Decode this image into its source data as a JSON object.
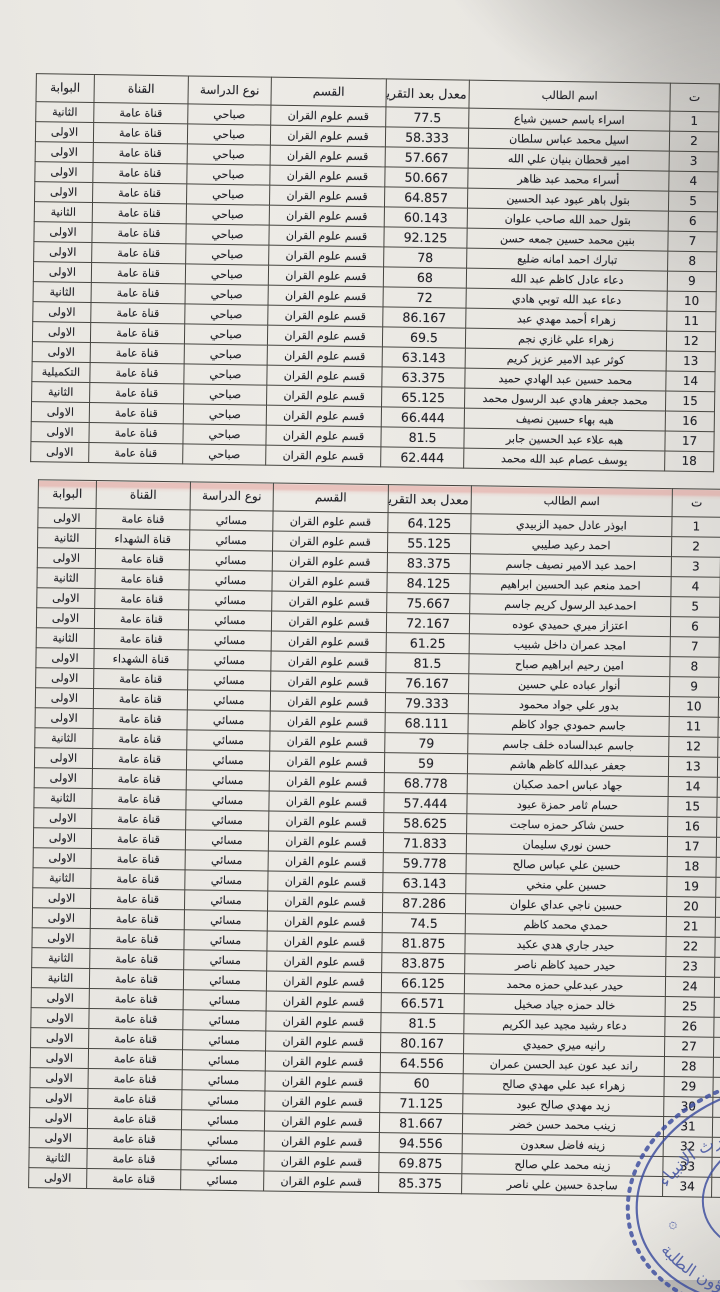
{
  "document": {
    "columns": [
      "ت",
      "اسم الطالب",
      "معدل بعد التقريب",
      "القسم",
      "نوع الدراسة",
      "القناة",
      "البوابة"
    ],
    "tables": [
      {
        "label": "morning-section",
        "department": "قسم علوم القران",
        "study_type": "صباحي",
        "rows": [
          [
            "1",
            "اسراء باسم حسين شياع",
            "77.5",
            "قناة عامة",
            "الثانية"
          ],
          [
            "2",
            "اسيل محمد عباس سلطان",
            "58.333",
            "قناة عامة",
            "الاولى"
          ],
          [
            "3",
            "امير قحطان بنيان علي الله",
            "57.667",
            "قناة عامة",
            "الاولى"
          ],
          [
            "4",
            "أسراء محمد عبد ظاهر",
            "50.667",
            "قناة عامة",
            "الاولى"
          ],
          [
            "5",
            "بتول باهر عبود عبد الحسين",
            "64.857",
            "قناة عامة",
            "الاولى"
          ],
          [
            "6",
            "بتول حمد الله صاحب علوان",
            "60.143",
            "قناة عامة",
            "الثانية"
          ],
          [
            "7",
            "بنين محمد حسين جمعه حسن",
            "92.125",
            "قناة عامة",
            "الاولى"
          ],
          [
            "8",
            "تبارك احمد امانه ضليع",
            "78",
            "قناة عامة",
            "الاولى"
          ],
          [
            "9",
            "دعاء عادل كاظم عبد الله",
            "68",
            "قناة عامة",
            "الاولى"
          ],
          [
            "10",
            "دعاء عبد الله توبي هادي",
            "72",
            "قناة عامة",
            "الثانية"
          ],
          [
            "11",
            "زهراء أحمد مهدي عبد",
            "86.167",
            "قناة عامة",
            "الاولى"
          ],
          [
            "12",
            "زهراء علي غازي نجم",
            "69.5",
            "قناة عامة",
            "الاولى"
          ],
          [
            "13",
            "كوثر عبد الامير عزيز كريم",
            "63.143",
            "قناة عامة",
            "الاولى"
          ],
          [
            "14",
            "محمد حسين عبد الهادي حميد",
            "63.375",
            "قناة عامة",
            "التكميلية"
          ],
          [
            "15",
            "محمد جعفر هادي عبد الرسول محمد",
            "65.125",
            "قناة عامة",
            "الثانية"
          ],
          [
            "16",
            "هبه بهاء حسين نصيف",
            "66.444",
            "قناة عامة",
            "الاولى"
          ],
          [
            "17",
            "هبه علاء عبد الحسين جابر",
            "81.5",
            "قناة عامة",
            "الاولى"
          ],
          [
            "18",
            "يوسف عصام عبد الله محمد",
            "62.444",
            "قناة عامة",
            "الاولى"
          ]
        ]
      },
      {
        "label": "evening-section",
        "department": "قسم علوم القران",
        "study_type": "مسائي",
        "has_extra_column": true,
        "rows": [
          [
            "1",
            "ابوذر عادل حميد الزبيدي",
            "64.125",
            "قناة عامة",
            "الاولى"
          ],
          [
            "2",
            "احمد رعيد صليبي",
            "55.125",
            "قناة الشهداء",
            "الثانية"
          ],
          [
            "3",
            "احمد عبد الامير نصيف جاسم",
            "83.375",
            "قناة عامة",
            "الاولى"
          ],
          [
            "4",
            "احمد منعم عبد الحسين ابراهيم",
            "84.125",
            "قناة عامة",
            "الثانية"
          ],
          [
            "5",
            "احمدعبد الرسول كريم جاسم",
            "75.667",
            "قناة عامة",
            "الاولى"
          ],
          [
            "6",
            "اعتزاز ميري حميدي عوده",
            "72.167",
            "قناة عامة",
            "الاولى"
          ],
          [
            "7",
            "امجد عمران داخل شبيب",
            "61.25",
            "قناة عامة",
            "الثانية"
          ],
          [
            "8",
            "امين رحيم ابراهيم صباح",
            "81.5",
            "قناة الشهداء",
            "الاولى"
          ],
          [
            "9",
            "أنوار عباده علي حسين",
            "76.167",
            "قناة عامة",
            "الاولى"
          ],
          [
            "10",
            "بدور علي جواد محمود",
            "79.333",
            "قناة عامة",
            "الاولى"
          ],
          [
            "11",
            "جاسم حمودي جواد كاظم",
            "68.111",
            "قناة عامة",
            "الاولى"
          ],
          [
            "12",
            "جاسم عبدالساده خلف جاسم",
            "79",
            "قناة عامة",
            "الثانية"
          ],
          [
            "13",
            "جعفر عبدالله كاظم هاشم",
            "59",
            "قناة عامة",
            "الاولى"
          ],
          [
            "14",
            "جهاد عباس احمد صكبان",
            "68.778",
            "قناة عامة",
            "الاولى"
          ],
          [
            "15",
            "حسام ثامر حمزة عبود",
            "57.444",
            "قناة عامة",
            "الثانية"
          ],
          [
            "16",
            "حسن شاكر حمزه ساجت",
            "58.625",
            "قناة عامة",
            "الاولى"
          ],
          [
            "17",
            "حسن نوري سليمان",
            "71.833",
            "قناة عامة",
            "الاولى"
          ],
          [
            "18",
            "حسين علي عباس صالح",
            "59.778",
            "قناة عامة",
            "الاولى"
          ],
          [
            "19",
            "حسين علي منخي",
            "63.143",
            "قناة عامة",
            "الثانية"
          ],
          [
            "20",
            "حسين ناجي عداي علوان",
            "87.286",
            "قناة عامة",
            "الاولى"
          ],
          [
            "21",
            "حمدي محمد كاظم",
            "74.5",
            "قناة عامة",
            "الاولى"
          ],
          [
            "22",
            "حيدر جاري هدي عكيد",
            "81.875",
            "قناة عامة",
            "الاولى"
          ],
          [
            "23",
            "حيدر حميد كاظم ناصر",
            "83.875",
            "قناة عامة",
            "الثانية"
          ],
          [
            "24",
            "حيدر عبدعلي حمزه محمد",
            "66.125",
            "قناة عامة",
            "الثانية"
          ],
          [
            "25",
            "خالد حمزه جياد صخيل",
            "66.571",
            "قناة عامة",
            "الاولى"
          ],
          [
            "26",
            "دعاء رشيد مجيد عبد الكريم",
            "81.5",
            "قناة عامة",
            "الاولى"
          ],
          [
            "27",
            "رانيه ميري حميدي",
            "80.167",
            "قناة عامة",
            "الاولى"
          ],
          [
            "28",
            "راند عبد عون عبد الحسن عمران",
            "64.556",
            "قناة عامة",
            "الاولى"
          ],
          [
            "29",
            "زهراء عبد علي مهدي صالح",
            "60",
            "قناة عامة",
            "الاولى"
          ],
          [
            "30",
            "زيد مهدي صالح عبود",
            "71.125",
            "قناة عامة",
            "الاولى"
          ],
          [
            "31",
            "زينب محمد حسن خضر",
            "81.667",
            "قناة عامة",
            "الاولى"
          ],
          [
            "32",
            "زينه فاضل سعدون",
            "94.556",
            "قناة عامة",
            "الاولى"
          ],
          [
            "33",
            "زينه محمد علي صالح",
            "69.875",
            "قناة عامة",
            "الثانية"
          ],
          [
            "34",
            "ساجدة حسين علي ناصر",
            "85.375",
            "قناة عامة",
            "الاولى"
          ]
        ]
      }
    ],
    "stamp": {
      "top_text": "جامعة وارث الانبياء",
      "bottom_text": "وشؤون الطلبة"
    },
    "colors": {
      "stamp_ink": "#3b4c9e",
      "highlight_pink": "#e2807a",
      "paper": "#edebe6"
    }
  }
}
